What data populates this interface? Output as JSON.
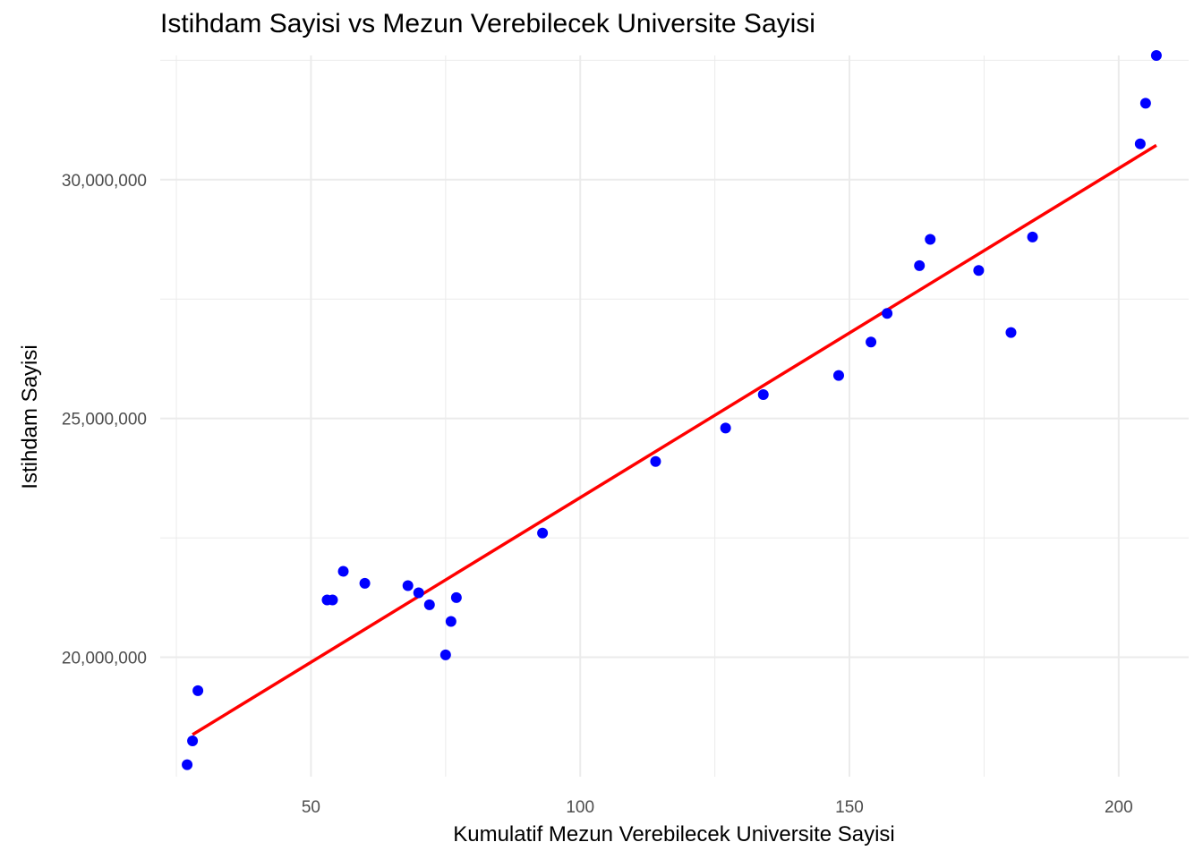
{
  "chart_data": {
    "type": "scatter",
    "title": "Istihdam Sayisi vs Mezun Verebilecek Universite Sayisi",
    "xlabel": "Kumulatif Mezun Verebilecek Universite Sayisi",
    "ylabel": "Istihdam Sayisi",
    "xlim": [
      22,
      213
    ],
    "ylim": [
      17500000,
      32600000
    ],
    "x_ticks": [
      50,
      100,
      150,
      200
    ],
    "x_tick_labels": [
      "50",
      "100",
      "150",
      "200"
    ],
    "y_ticks": [
      20000000,
      25000000,
      30000000
    ],
    "y_tick_labels": [
      "20,000,000",
      "25,000,000",
      "30,000,000"
    ],
    "grid": true,
    "colors": {
      "points": "#0000ff",
      "trend": "#ff0000",
      "grid": "#ebebeb"
    },
    "series": [
      {
        "type": "scatter",
        "x": [
          27,
          28,
          29,
          53,
          54,
          56,
          60,
          68,
          70,
          72,
          75,
          76,
          77,
          93,
          114,
          127,
          134,
          148,
          154,
          157,
          163,
          165,
          174,
          180,
          184,
          204,
          205,
          207
        ],
        "y": [
          17750000,
          18250000,
          19300000,
          21200000,
          21200000,
          21800000,
          21550000,
          21500000,
          21350000,
          21100000,
          20050000,
          20750000,
          21250000,
          22600000,
          24100000,
          24800000,
          25500000,
          25900000,
          26600000,
          27200000,
          28200000,
          28750000,
          28100000,
          26800000,
          28800000,
          30750000,
          31600000,
          32600000
        ]
      },
      {
        "type": "line",
        "x": [
          28,
          207
        ],
        "y": [
          18380000,
          30720000
        ]
      }
    ]
  }
}
